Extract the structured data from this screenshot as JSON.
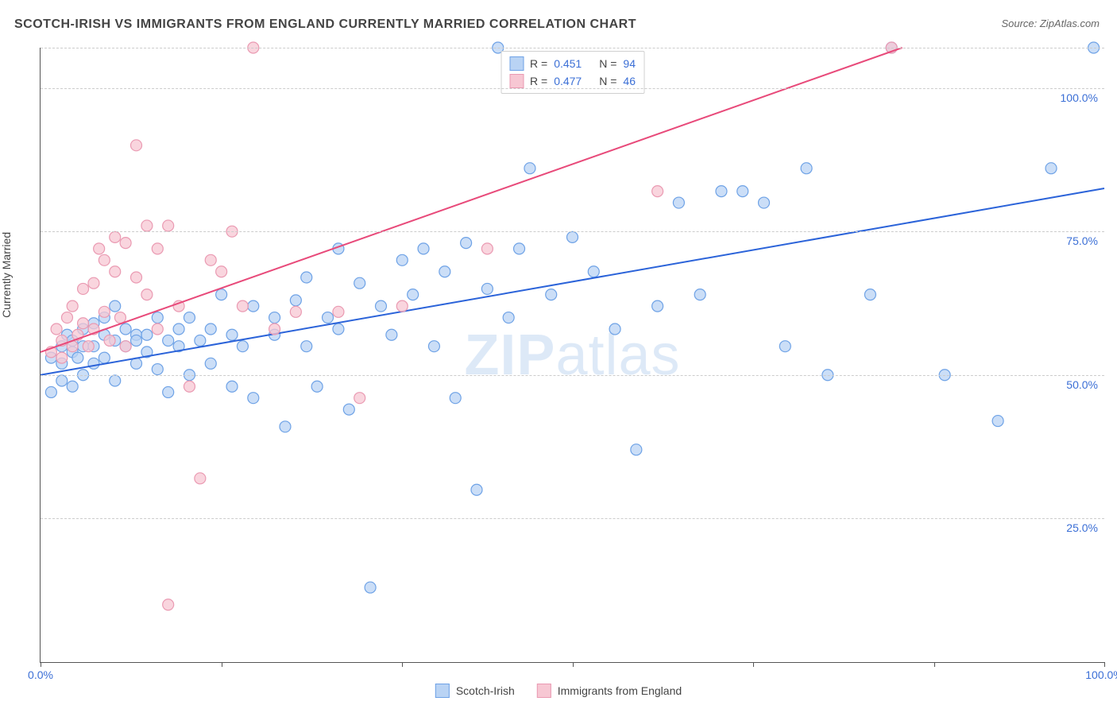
{
  "title": "SCOTCH-IRISH VS IMMIGRANTS FROM ENGLAND CURRENTLY MARRIED CORRELATION CHART",
  "source": "Source: ZipAtlas.com",
  "ylabel": "Currently Married",
  "watermark_a": "ZIP",
  "watermark_b": "atlas",
  "chart": {
    "type": "scatter",
    "xlim": [
      0,
      100
    ],
    "ylim": [
      0,
      107
    ],
    "xticks": [
      0,
      17,
      34,
      50,
      67,
      84,
      100
    ],
    "xlabels": {
      "0": "0.0%",
      "100": "100.0%"
    },
    "ygrids": [
      25,
      50,
      75,
      100,
      107
    ],
    "ylabels": {
      "25": "25.0%",
      "50": "50.0%",
      "75": "75.0%",
      "100": "100.0%"
    },
    "background": "#ffffff",
    "grid_color": "#cccccc",
    "axis_color": "#555555",
    "marker_radius": 7,
    "marker_stroke_width": 1.2,
    "series": [
      {
        "name": "Scotch-Irish",
        "color_fill": "#b9d3f4",
        "color_stroke": "#6ea2e6",
        "trend_color": "#2b63d9",
        "trend_width": 2,
        "R": "0.451",
        "N": "94",
        "trend": {
          "x1": 0,
          "y1": 50,
          "x2": 100,
          "y2": 82.5
        },
        "points": [
          [
            1,
            47
          ],
          [
            1,
            53
          ],
          [
            2,
            49
          ],
          [
            2,
            55
          ],
          [
            2,
            52
          ],
          [
            2.5,
            57
          ],
          [
            3,
            54
          ],
          [
            3,
            48
          ],
          [
            3,
            56
          ],
          [
            3.5,
            53
          ],
          [
            4,
            55
          ],
          [
            4,
            50
          ],
          [
            4,
            58
          ],
          [
            5,
            55
          ],
          [
            5,
            52
          ],
          [
            5,
            59
          ],
          [
            6,
            57
          ],
          [
            6,
            53
          ],
          [
            6,
            60
          ],
          [
            7,
            56
          ],
          [
            7,
            49
          ],
          [
            7,
            62
          ],
          [
            8,
            55
          ],
          [
            8,
            58
          ],
          [
            9,
            57
          ],
          [
            9,
            52
          ],
          [
            9,
            56
          ],
          [
            10,
            54
          ],
          [
            10,
            57
          ],
          [
            11,
            51
          ],
          [
            11,
            60
          ],
          [
            12,
            56
          ],
          [
            12,
            47
          ],
          [
            13,
            58
          ],
          [
            13,
            55
          ],
          [
            14,
            50
          ],
          [
            14,
            60
          ],
          [
            15,
            56
          ],
          [
            16,
            58
          ],
          [
            16,
            52
          ],
          [
            17,
            64
          ],
          [
            18,
            57
          ],
          [
            18,
            48
          ],
          [
            19,
            55
          ],
          [
            20,
            62
          ],
          [
            20,
            46
          ],
          [
            22,
            60
          ],
          [
            22,
            57
          ],
          [
            23,
            41
          ],
          [
            24,
            63
          ],
          [
            25,
            55
          ],
          [
            25,
            67
          ],
          [
            26,
            48
          ],
          [
            27,
            60
          ],
          [
            28,
            58
          ],
          [
            28,
            72
          ],
          [
            29,
            44
          ],
          [
            30,
            66
          ],
          [
            31,
            13
          ],
          [
            32,
            62
          ],
          [
            33,
            57
          ],
          [
            34,
            70
          ],
          [
            35,
            64
          ],
          [
            36,
            72
          ],
          [
            37,
            55
          ],
          [
            38,
            68
          ],
          [
            39,
            46
          ],
          [
            40,
            73
          ],
          [
            41,
            30
          ],
          [
            42,
            65
          ],
          [
            43,
            107
          ],
          [
            44,
            60
          ],
          [
            45,
            72
          ],
          [
            46,
            86
          ],
          [
            48,
            64
          ],
          [
            50,
            74
          ],
          [
            52,
            68
          ],
          [
            54,
            58
          ],
          [
            56,
            37
          ],
          [
            58,
            62
          ],
          [
            60,
            80
          ],
          [
            62,
            64
          ],
          [
            64,
            82
          ],
          [
            66,
            82
          ],
          [
            68,
            80
          ],
          [
            70,
            55
          ],
          [
            72,
            86
          ],
          [
            74,
            50
          ],
          [
            78,
            64
          ],
          [
            80,
            107
          ],
          [
            85,
            50
          ],
          [
            90,
            42
          ],
          [
            95,
            86
          ],
          [
            99,
            107
          ]
        ]
      },
      {
        "name": "Immigrants from England",
        "color_fill": "#f7c7d3",
        "color_stroke": "#ea9ab2",
        "trend_color": "#e84a7a",
        "trend_width": 2,
        "R": "0.477",
        "N": "46",
        "trend": {
          "x1": 0,
          "y1": 54,
          "x2": 81,
          "y2": 107
        },
        "points": [
          [
            1,
            54
          ],
          [
            1.5,
            58
          ],
          [
            2,
            56
          ],
          [
            2,
            53
          ],
          [
            2.5,
            60
          ],
          [
            3,
            55
          ],
          [
            3,
            62
          ],
          [
            3.5,
            57
          ],
          [
            4,
            59
          ],
          [
            4,
            65
          ],
          [
            4.5,
            55
          ],
          [
            5,
            66
          ],
          [
            5,
            58
          ],
          [
            5.5,
            72
          ],
          [
            6,
            61
          ],
          [
            6,
            70
          ],
          [
            6.5,
            56
          ],
          [
            7,
            68
          ],
          [
            7,
            74
          ],
          [
            7.5,
            60
          ],
          [
            8,
            73
          ],
          [
            8,
            55
          ],
          [
            9,
            90
          ],
          [
            9,
            67
          ],
          [
            10,
            64
          ],
          [
            10,
            76
          ],
          [
            11,
            72
          ],
          [
            11,
            58
          ],
          [
            12,
            10
          ],
          [
            12,
            76
          ],
          [
            13,
            62
          ],
          [
            14,
            48
          ],
          [
            15,
            32
          ],
          [
            16,
            70
          ],
          [
            17,
            68
          ],
          [
            18,
            75
          ],
          [
            19,
            62
          ],
          [
            20,
            107
          ],
          [
            22,
            58
          ],
          [
            24,
            61
          ],
          [
            28,
            61
          ],
          [
            30,
            46
          ],
          [
            34,
            62
          ],
          [
            42,
            72
          ],
          [
            58,
            82
          ],
          [
            80,
            107
          ]
        ]
      }
    ]
  },
  "legend_bottom": [
    {
      "label": "Scotch-Irish",
      "swatch_fill": "#b9d3f4",
      "swatch_stroke": "#6ea2e6"
    },
    {
      "label": "Immigrants from England",
      "swatch_fill": "#f7c7d3",
      "swatch_stroke": "#ea9ab2"
    }
  ]
}
